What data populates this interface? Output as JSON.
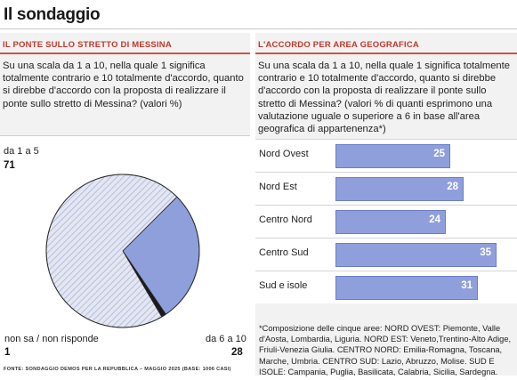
{
  "title": "Il sondaggio",
  "left_panel": {
    "heading": "IL PONTE SULLO STRETTO DI MESSINA",
    "question": "Su una scala da 1 a 10, nella quale 1 significa totalmente contrario e 10 totalmente d'accordo, quanto si direbbe d'accordo con la proposta di realizzare il ponte sullo stretto di Messina? (valori %)"
  },
  "right_panel": {
    "heading": "L'ACCORDO PER AREA GEOGRAFICA",
    "question": "Su una scala da 1 a 10, nella quale 1 significa totalmente contrario e 10 totalmente d'accordo, quanto si direbbe d'accordo con la proposta di realizzare il ponte sullo stretto di Messina? (valori % di quanti esprimono una valutazione uguale o superiore a 6 in base all'area geografica di appartenenza*)",
    "footnote": "*Composizione delle cinque aree: NORD OVEST: Piemonte, Valle d'Aosta, Lombardia, Liguria. NORD EST: Veneto,Trentino-Alto Adige, Friuli-Venezia Giulia. CENTRO NORD: Emilia-Romagna, Toscana, Marche, Umbria. CENTRO SUD: Lazio, Abruzzo, Molise. SUD E ISOLE: Campania, Puglia, Basilicata, Calabria, Sicilia, Sardegna."
  },
  "source": "FONTE: SONDAGGIO DEMOS PER LA REPUBBLICA – MAGGIO 2025 (BASE: 1006 CASI)",
  "colors": {
    "accent_red": "#c0392b",
    "bar_blue": "#8f9fdc",
    "pie_blue": "#8f9fdc",
    "pie_hatch": "#b8bfdc"
  },
  "chart_data": [
    {
      "type": "pie",
      "categories": [
        "da 1 a 5",
        "da 6 a 10",
        "non sa / non risponde"
      ],
      "values": [
        71,
        28,
        1
      ],
      "labels": [
        "71",
        "28",
        "1"
      ]
    },
    {
      "type": "bar",
      "orientation": "horizontal",
      "categories": [
        "Nord Ovest",
        "Nord Est",
        "Centro Nord",
        "Centro Sud",
        "Sud e isole"
      ],
      "values": [
        25,
        28,
        24,
        35,
        31
      ],
      "xlim": [
        0,
        38
      ]
    }
  ]
}
